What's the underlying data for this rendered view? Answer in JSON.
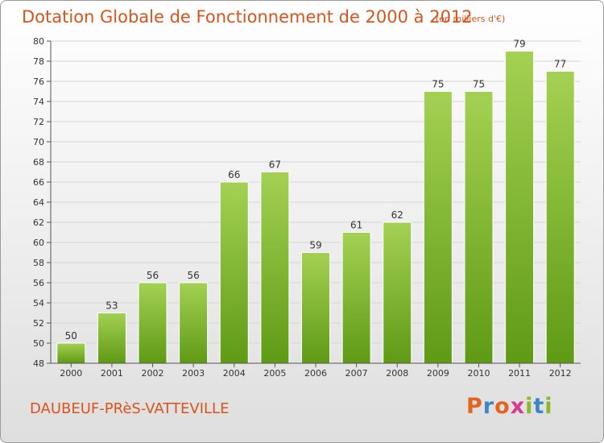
{
  "header": {
    "title": "Dotation Globale de Fonctionnement de 2000 à 2012",
    "unit": "(en milliers d'€)"
  },
  "footer": {
    "commune": "DAUBEUF-PRèS-VATTEVILLE",
    "logo_text": "Proxiti",
    "logo_colors": [
      "#e3641e",
      "#3a86c8",
      "#e3641e",
      "#d23b8e",
      "#8ab82a",
      "#3a86c8",
      "#8ab82a"
    ]
  },
  "colors": {
    "title": "#d9541c",
    "bar_light": "#a4d153",
    "bar_dark": "#5f9a15",
    "grid": "#d5d5d5",
    "axis": "#555555"
  },
  "chart_data": {
    "type": "bar",
    "title": "Dotation Globale de Fonctionnement de 2000 à 2012",
    "categories": [
      "2000",
      "2001",
      "2002",
      "2003",
      "2004",
      "2005",
      "2006",
      "2007",
      "2008",
      "2009",
      "2010",
      "2011",
      "2012"
    ],
    "values": [
      50,
      53,
      56,
      56,
      66,
      67,
      59,
      61,
      62,
      75,
      75,
      79,
      77
    ],
    "ylim": [
      48,
      80
    ],
    "yticks": [
      48,
      50,
      52,
      54,
      56,
      58,
      60,
      62,
      64,
      66,
      68,
      70,
      72,
      74,
      76,
      78,
      80
    ],
    "grid": true,
    "legend": "none",
    "xlabel": "",
    "ylabel": ""
  }
}
